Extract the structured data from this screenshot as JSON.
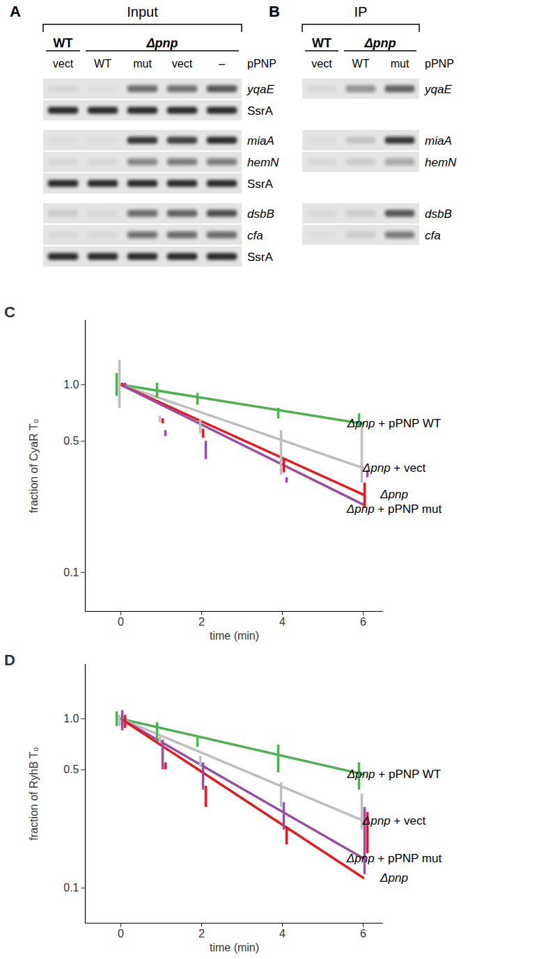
{
  "blots": [
    {
      "label": "A",
      "title": "Input",
      "groups": [
        {
          "name": "WT",
          "lanes": 1
        },
        {
          "name": "Δpnp",
          "lanes": 4
        }
      ],
      "lanes": [
        "vect",
        "WT",
        "mut",
        "vect",
        "–"
      ],
      "lane_header": "pPNP",
      "blocks": [
        [
          {
            "name": "yqaE",
            "bands": [
              0.06,
              0.03,
              0.6,
              0.55,
              0.7
            ]
          },
          {
            "name": "SsrA",
            "bands": [
              0.9,
              0.9,
              0.9,
              0.9,
              0.9
            ]
          }
        ],
        [
          {
            "name": "miaA",
            "bands": [
              0.04,
              0.03,
              0.85,
              0.8,
              0.9
            ]
          },
          {
            "name": "hemN",
            "bands": [
              0.05,
              0.05,
              0.45,
              0.5,
              0.5
            ]
          },
          {
            "name": "SsrA",
            "bands": [
              0.9,
              0.9,
              0.9,
              0.9,
              0.9
            ]
          }
        ],
        [
          {
            "name": "dsbB",
            "bands": [
              0.1,
              0.05,
              0.6,
              0.65,
              0.75
            ]
          },
          {
            "name": "cfa",
            "bands": [
              0.05,
              0.05,
              0.55,
              0.6,
              0.6
            ]
          },
          {
            "name": "SsrA",
            "bands": [
              0.9,
              0.9,
              0.9,
              0.9,
              0.9
            ]
          }
        ]
      ]
    },
    {
      "label": "B",
      "title": "IP",
      "groups": [
        {
          "name": "WT",
          "lanes": 1
        },
        {
          "name": "Δpnp",
          "lanes": 2
        }
      ],
      "lanes": [
        "vect",
        "WT",
        "mut"
      ],
      "lane_header": "pPNP",
      "blocks": [
        [
          {
            "name": "yqaE",
            "bands": [
              0.05,
              0.4,
              0.65
            ]
          }
        ],
        [
          {
            "name": "miaA",
            "bands": [
              0.03,
              0.15,
              0.85
            ]
          },
          {
            "name": "hemN",
            "bands": [
              0.05,
              0.1,
              0.3
            ]
          }
        ],
        [
          {
            "name": "dsbB",
            "bands": [
              0.05,
              0.1,
              0.7
            ]
          },
          {
            "name": "cfa",
            "bands": [
              0.03,
              0.1,
              0.5
            ]
          }
        ]
      ]
    }
  ],
  "chart_data": [
    {
      "type": "line",
      "label": "C",
      "x_label": "time (min)",
      "y_label": "fraction of CyaR T₀",
      "log": "y",
      "xlim": [
        -0.88,
        6.5
      ],
      "xticks": [
        0,
        2,
        4,
        6
      ],
      "ylim": [
        0.062,
        2.2
      ],
      "yticks": [
        0.1,
        0.5,
        {
          "value": 1,
          "label": "1.0"
        }
      ],
      "series": [
        {
          "name": "Δpnp + pPNP WT",
          "color": "#4cb050",
          "x": [
            0,
            6
          ],
          "values": [
            1,
            0.62
          ],
          "error_bars": {
            "x": [
              0,
              1,
              2,
              4,
              6
            ],
            "low": [
              0.87,
              0.85,
              0.78,
              0.66,
              0.6
            ],
            "high": [
              1.15,
              1.02,
              0.9,
              0.75,
              0.7
            ]
          }
        },
        {
          "name": "Δpnp + vect",
          "color": "#bdbdbd",
          "x": [
            0,
            6
          ],
          "values": [
            1,
            0.36
          ],
          "error_bars": {
            "x": [
              0,
              1,
              2,
              4,
              6
            ],
            "low": [
              0.75,
              0.63,
              0.55,
              0.33,
              0.3
            ],
            "high": [
              1.35,
              0.68,
              0.65,
              0.57,
              0.6
            ]
          }
        },
        {
          "name": "Δpnp",
          "color": "#e41a1c",
          "x": [
            0,
            6
          ],
          "values": [
            1,
            0.26
          ],
          "error_bars": {
            "x": [
              0,
              1,
              2,
              4,
              6
            ],
            "low": [
              0.98,
              0.62,
              0.52,
              0.34,
              0.22
            ],
            "high": [
              1.02,
              0.66,
              0.58,
              0.4,
              0.3
            ]
          }
        },
        {
          "name": "Δpnp + pPNP mut",
          "color": "#984ea3",
          "x": [
            0,
            6
          ],
          "values": [
            1,
            0.23
          ],
          "error_bars": {
            "x": [
              0,
              1,
              2,
              4,
              6
            ],
            "low": [
              0.98,
              0.53,
              0.4,
              0.3,
              0.32
            ],
            "high": [
              1.02,
              0.57,
              0.5,
              0.32,
              0.35
            ]
          }
        }
      ]
    },
    {
      "type": "line",
      "label": "D",
      "x_label": "time (min)",
      "y_label": "fraction of RyhB T₀",
      "log": "y",
      "xlim": [
        -0.88,
        6.5
      ],
      "xticks": [
        0,
        2,
        4,
        6
      ],
      "ylim": [
        0.062,
        2.1
      ],
      "yticks": [
        0.1,
        0.5,
        {
          "value": 1,
          "label": "1.0"
        }
      ],
      "series": [
        {
          "name": "Δpnp + pPNP WT",
          "color": "#4cb050",
          "x": [
            0,
            6
          ],
          "values": [
            1,
            0.47
          ],
          "error_bars": {
            "x": [
              0,
              1,
              2,
              4,
              6
            ],
            "low": [
              0.9,
              0.75,
              0.68,
              0.48,
              0.38
            ],
            "high": [
              1.1,
              0.95,
              0.77,
              0.7,
              0.55
            ]
          }
        },
        {
          "name": "Δpnp + vect",
          "color": "#bdbdbd",
          "x": [
            0,
            6
          ],
          "values": [
            1,
            0.25
          ],
          "error_bars": {
            "x": [
              0,
              1,
              2,
              4,
              6
            ],
            "low": [
              0.9,
              0.72,
              0.52,
              0.3,
              0.22
            ],
            "high": [
              1.05,
              0.78,
              0.6,
              0.42,
              0.36
            ]
          }
        },
        {
          "name": "Δpnp + pPNP mut",
          "color": "#984ea3",
          "x": [
            0,
            6
          ],
          "values": [
            1,
            0.15
          ],
          "error_bars": {
            "x": [
              0,
              1,
              2,
              4,
              6
            ],
            "low": [
              0.85,
              0.5,
              0.38,
              0.22,
              0.12
            ],
            "high": [
              1.12,
              0.75,
              0.55,
              0.32,
              0.3
            ]
          }
        },
        {
          "name": "Δpnp",
          "color": "#e41a1c",
          "x": [
            0,
            6
          ],
          "values": [
            1,
            0.115
          ],
          "error_bars": {
            "x": [
              0,
              1,
              2,
              4,
              6
            ],
            "low": [
              0.88,
              0.5,
              0.3,
              0.18,
              0.16
            ],
            "high": [
              1.05,
              0.55,
              0.4,
              0.23,
              0.28
            ]
          }
        }
      ]
    }
  ]
}
